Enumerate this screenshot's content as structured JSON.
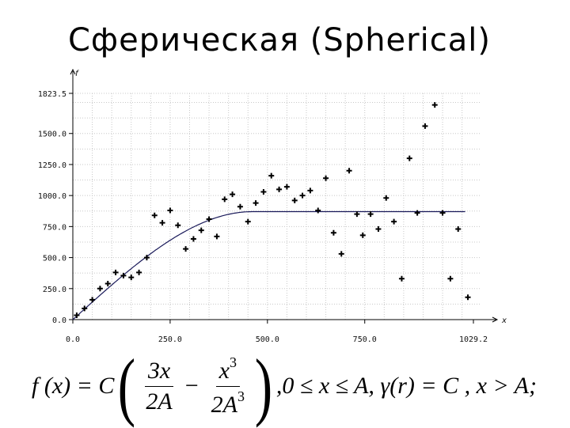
{
  "title": "Сферическая (Spherical)",
  "chart_data": {
    "type": "scatter",
    "y_axis_letter": "f",
    "x_axis_letter": "x",
    "xlim": [
      0,
      1029.2
    ],
    "ylim": [
      0,
      1823.5
    ],
    "x_ticks": [
      "0.0",
      "250.0",
      "500.0",
      "750.0",
      "1029.2"
    ],
    "x_tick_values": [
      0,
      250,
      500,
      750,
      1029.2
    ],
    "y_ticks": [
      "0.0",
      "250.0",
      "500.0",
      "750.0",
      "1000.0",
      "1250.0",
      "1500.0",
      "1823.5"
    ],
    "y_tick_values": [
      0,
      250,
      500,
      750,
      1000,
      1250,
      1500,
      1823.5
    ],
    "grid": true,
    "points": [
      [
        10,
        35
      ],
      [
        30,
        90
      ],
      [
        50,
        160
      ],
      [
        70,
        250
      ],
      [
        90,
        290
      ],
      [
        110,
        380
      ],
      [
        130,
        355
      ],
      [
        150,
        340
      ],
      [
        170,
        380
      ],
      [
        190,
        500
      ],
      [
        210,
        840
      ],
      [
        230,
        780
      ],
      [
        250,
        880
      ],
      [
        270,
        760
      ],
      [
        290,
        570
      ],
      [
        310,
        650
      ],
      [
        330,
        720
      ],
      [
        350,
        810
      ],
      [
        370,
        670
      ],
      [
        390,
        970
      ],
      [
        410,
        1010
      ],
      [
        430,
        910
      ],
      [
        450,
        790
      ],
      [
        470,
        940
      ],
      [
        490,
        1030
      ],
      [
        510,
        1160
      ],
      [
        530,
        1050
      ],
      [
        550,
        1070
      ],
      [
        570,
        960
      ],
      [
        590,
        1000
      ],
      [
        610,
        1040
      ],
      [
        630,
        880
      ],
      [
        650,
        1140
      ],
      [
        670,
        700
      ],
      [
        690,
        530
      ],
      [
        710,
        1200
      ],
      [
        730,
        850
      ],
      [
        745,
        680
      ],
      [
        765,
        850
      ],
      [
        785,
        730
      ],
      [
        805,
        980
      ],
      [
        825,
        790
      ],
      [
        845,
        330
      ],
      [
        865,
        1300
      ],
      [
        885,
        860
      ],
      [
        905,
        1560
      ],
      [
        930,
        1730
      ],
      [
        950,
        860
      ],
      [
        970,
        330
      ],
      [
        990,
        730
      ],
      [
        1015,
        180
      ]
    ],
    "model_curve": {
      "name": "spherical",
      "sill": 870,
      "range": 460
    }
  },
  "formula": {
    "lhs": "f (x) = C",
    "frac1_num": "3x",
    "frac1_den": "2A",
    "minus": "−",
    "frac2_num": "x",
    "frac2_num_exp": "3",
    "frac2_den": "2A",
    "frac2_den_exp": "3",
    "tail": ",0 ≤ x ≤ A, γ(r) = C , x > A;"
  }
}
